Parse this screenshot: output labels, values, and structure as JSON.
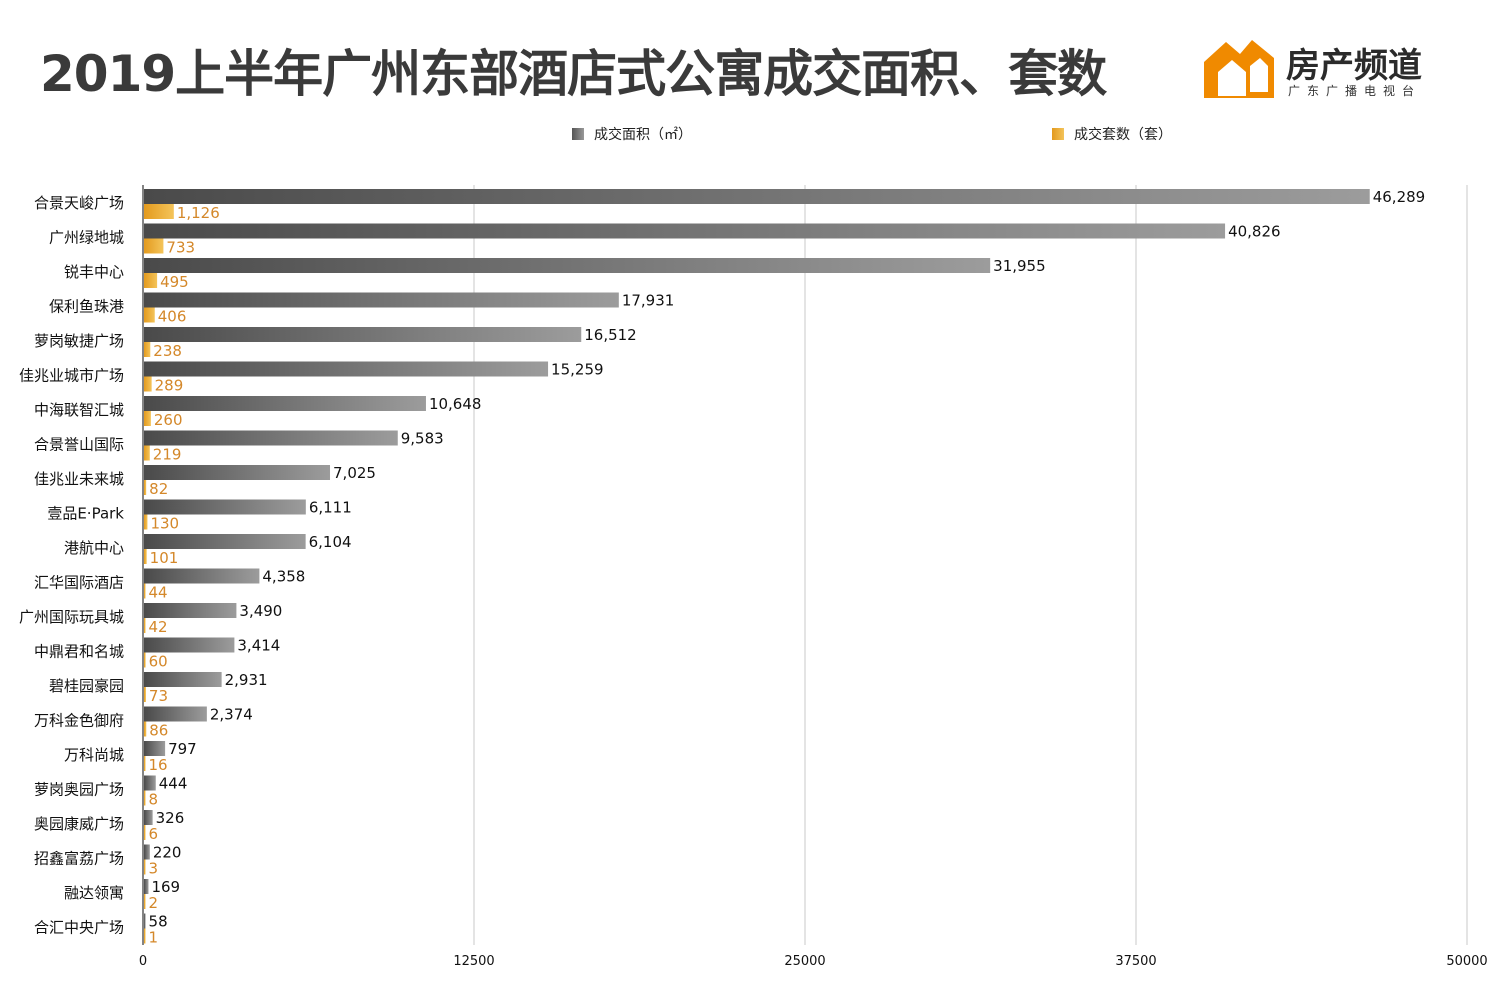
{
  "title": "2019上半年广州东部酒店式公寓成交面积、套数",
  "logo": {
    "name": "房产频道",
    "subtitle": "广东广播电视台",
    "icon": "house-logo-icon",
    "color": "#f08a00"
  },
  "chart_data": {
    "type": "bar",
    "orientation": "horizontal",
    "categories": [
      "合景天峻广场",
      "广州绿地城",
      "锐丰中心",
      "保利鱼珠港",
      "萝岗敏捷广场",
      "佳兆业城市广场",
      "中海联智汇城",
      "合景誉山国际",
      "佳兆业未来城",
      "壹品E·Park",
      "港航中心",
      "汇华国际酒店",
      "广州国际玩具城",
      "中鼎君和名城",
      "碧桂园豪园",
      "万科金色御府",
      "万科尚城",
      "萝岗奥园广场",
      "奥园康威广场",
      "招鑫富荔广场",
      "融达领寓",
      "合汇中央广场"
    ],
    "series": [
      {
        "name": "成交面积（㎡）",
        "color": "#7a7a7a",
        "values": [
          46289,
          40826,
          31955,
          17931,
          16512,
          15259,
          10648,
          9583,
          7025,
          6111,
          6104,
          4358,
          3490,
          3414,
          2931,
          2374,
          797,
          444,
          326,
          220,
          169,
          58
        ],
        "labels": [
          "46,289",
          "40,826",
          "31,955",
          "17,931",
          "16,512",
          "15,259",
          "10,648",
          "9,583",
          "7,025",
          "6,111",
          "6,104",
          "4,358",
          "3,490",
          "3,414",
          "2,931",
          "2,374",
          "797",
          "444",
          "326",
          "220",
          "169",
          "58"
        ]
      },
      {
        "name": "成交套数（套）",
        "color": "#e8aa2e",
        "values": [
          1126,
          733,
          495,
          406,
          238,
          289,
          260,
          219,
          82,
          130,
          101,
          44,
          42,
          60,
          73,
          86,
          16,
          8,
          6,
          3,
          2,
          1
        ],
        "labels": [
          "1,126",
          "733",
          "495",
          "406",
          "238",
          "289",
          "260",
          "219",
          "82",
          "130",
          "101",
          "44",
          "42",
          "60",
          "73",
          "86",
          "16",
          "8",
          "6",
          "3",
          "2",
          "1"
        ]
      }
    ],
    "xlim": [
      0,
      50000
    ],
    "xticks": [
      "0",
      "12500",
      "25000",
      "37500",
      "50000"
    ],
    "grid": true,
    "legend_position": "top"
  }
}
